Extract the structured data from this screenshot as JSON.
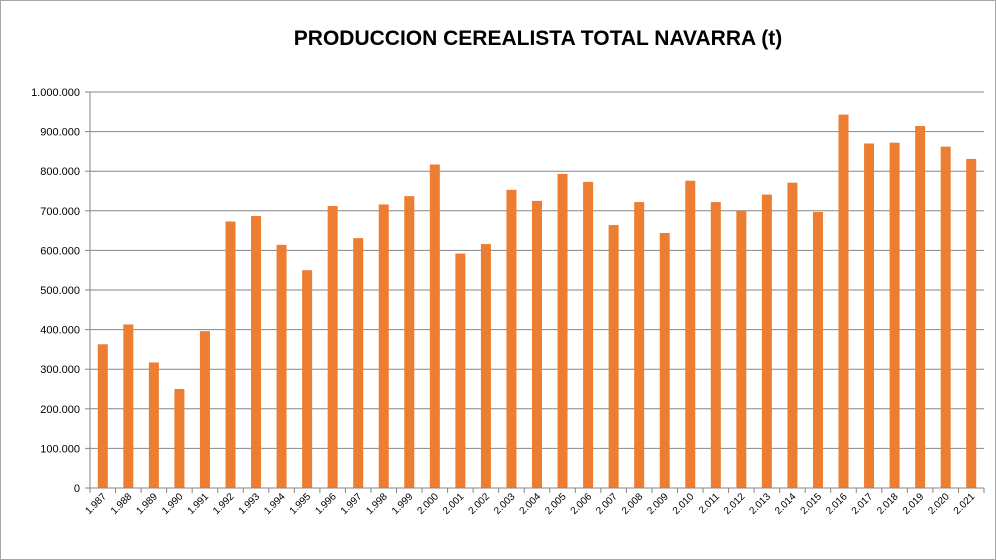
{
  "chart_data": {
    "type": "bar",
    "title": "PRODUCCION CEREALISTA TOTAL NAVARRA (t)",
    "xlabel": "",
    "ylabel": "",
    "ylim": [
      0,
      1000000
    ],
    "yticks": [
      0,
      100000,
      200000,
      300000,
      400000,
      500000,
      600000,
      700000,
      800000,
      900000,
      1000000
    ],
    "ytick_labels": [
      "0",
      "100.000",
      "200.000",
      "300.000",
      "400.000",
      "500.000",
      "600.000",
      "700.000",
      "800.000",
      "900.000",
      "1.000.000"
    ],
    "grid": true,
    "legend": "none",
    "bar_color": "#ed7d31",
    "categories": [
      "1.987",
      "1.988",
      "1.989",
      "1.990",
      "1.991",
      "1.992",
      "1.993",
      "1.994",
      "1.995",
      "1.996",
      "1.997",
      "1.998",
      "1.999",
      "2.000",
      "2.001",
      "2.002",
      "2.003",
      "2.004",
      "2.005",
      "2.006",
      "2.007",
      "2.008",
      "2.009",
      "2.010",
      "2.011",
      "2.012",
      "2.013",
      "2.014",
      "2.015",
      "2.016",
      "2.017",
      "2.018",
      "2.019",
      "2.020",
      "2.021"
    ],
    "values": [
      363000,
      413000,
      317000,
      250000,
      396000,
      673000,
      687000,
      614000,
      550000,
      712000,
      631000,
      716000,
      737000,
      817000,
      592000,
      616000,
      753000,
      725000,
      793000,
      773000,
      664000,
      722000,
      644000,
      776000,
      722000,
      700000,
      741000,
      771000,
      697000,
      943000,
      870000,
      872000,
      914000,
      862000,
      831000
    ]
  }
}
